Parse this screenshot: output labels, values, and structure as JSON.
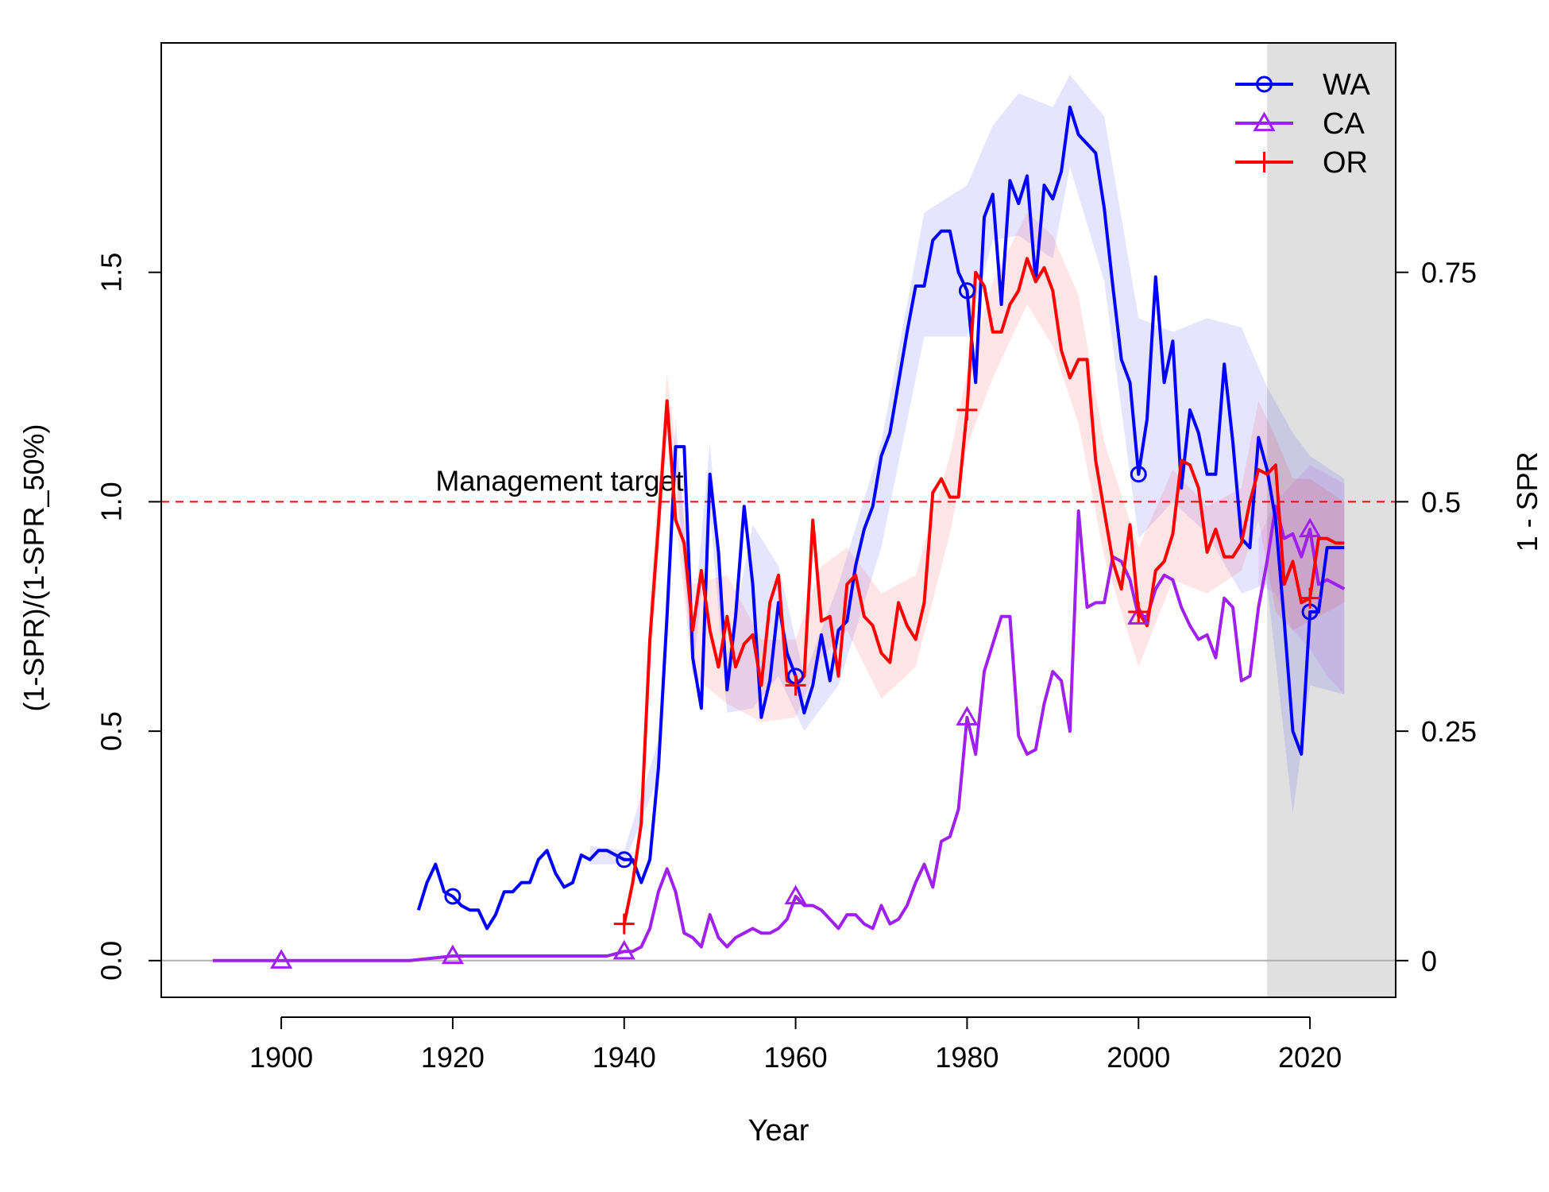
{
  "chart_data": {
    "type": "line",
    "title": "",
    "xlabel": "Year",
    "ylabel_left": "(1-SPR)/(1-SPR_50%)",
    "ylabel_right": "1 - SPR",
    "xlim": [
      1886,
      2030
    ],
    "ylim": [
      -0.08,
      2.0
    ],
    "x_ticks": [
      1900,
      1920,
      1940,
      1960,
      1980,
      2000,
      2020
    ],
    "y_ticks_left": [
      {
        "value": 0.0,
        "label": "0.0"
      },
      {
        "value": 0.5,
        "label": "0.5"
      },
      {
        "value": 1.0,
        "label": "1.0"
      },
      {
        "value": 1.5,
        "label": "1.5"
      }
    ],
    "y_ticks_right": [
      {
        "value": 0.0,
        "label": "0"
      },
      {
        "value": 0.5,
        "label": "0.25"
      },
      {
        "value": 1.0,
        "label": "0.5"
      },
      {
        "value": 1.5,
        "label": "0.75"
      }
    ],
    "reference_line": {
      "y": 1.0,
      "label": "Management target",
      "color": "#ff0000",
      "label_x": 1918
    },
    "zero_line": {
      "y": 0.0,
      "color": "#b0b0b0"
    },
    "forecast_region": {
      "x_start": 2015,
      "x_end": 2030,
      "color": "#e0e0e0"
    },
    "legend": {
      "position": "top-right",
      "entries": [
        {
          "name": "WA",
          "color": "#0000ff",
          "marker": "circle"
        },
        {
          "name": "CA",
          "color": "#a020f0",
          "marker": "triangle"
        },
        {
          "name": "OR",
          "color": "#ff0000",
          "marker": "plus"
        }
      ]
    },
    "series": [
      {
        "name": "WA",
        "color": "#0000ff",
        "band_color": "#0000ff",
        "marker": "circle",
        "marker_x": [
          1920,
          1940,
          1960,
          1980,
          2000,
          2020
        ],
        "x": [
          1916,
          1917,
          1918,
          1919,
          1920,
          1921,
          1922,
          1923,
          1924,
          1925,
          1926,
          1927,
          1928,
          1929,
          1930,
          1931,
          1932,
          1933,
          1934,
          1935,
          1936,
          1937,
          1938,
          1939,
          1940,
          1941,
          1942,
          1943,
          1944,
          1945,
          1946,
          1947,
          1948,
          1949,
          1950,
          1951,
          1952,
          1953,
          1954,
          1955,
          1956,
          1957,
          1958,
          1959,
          1960,
          1961,
          1962,
          1963,
          1964,
          1965,
          1966,
          1967,
          1968,
          1969,
          1970,
          1971,
          1972,
          1973,
          1974,
          1975,
          1976,
          1977,
          1978,
          1979,
          1980,
          1981,
          1982,
          1983,
          1984,
          1985,
          1986,
          1987,
          1988,
          1989,
          1990,
          1991,
          1992,
          1993,
          1994,
          1995,
          1996,
          1997,
          1998,
          1999,
          2000,
          2001,
          2002,
          2003,
          2004,
          2005,
          2006,
          2007,
          2008,
          2009,
          2010,
          2011,
          2012,
          2013,
          2014,
          2015,
          2016,
          2017,
          2018,
          2019,
          2020,
          2021,
          2022,
          2023,
          2024
        ],
        "y": [
          0.11,
          0.17,
          0.21,
          0.15,
          0.14,
          0.12,
          0.11,
          0.11,
          0.07,
          0.1,
          0.15,
          0.15,
          0.17,
          0.17,
          0.22,
          0.24,
          0.19,
          0.16,
          0.17,
          0.23,
          0.22,
          0.24,
          0.24,
          0.23,
          0.22,
          0.22,
          0.17,
          0.22,
          0.42,
          0.75,
          1.12,
          1.12,
          0.66,
          0.55,
          1.06,
          0.89,
          0.59,
          0.75,
          0.99,
          0.82,
          0.53,
          0.61,
          0.78,
          0.67,
          0.62,
          0.54,
          0.6,
          0.71,
          0.61,
          0.72,
          0.74,
          0.86,
          0.94,
          0.99,
          1.1,
          1.15,
          1.26,
          1.37,
          1.47,
          1.47,
          1.57,
          1.59,
          1.59,
          1.5,
          1.46,
          1.26,
          1.62,
          1.67,
          1.43,
          1.7,
          1.65,
          1.71,
          1.48,
          1.69,
          1.66,
          1.72,
          1.86,
          1.8,
          1.78,
          1.76,
          1.64,
          1.47,
          1.31,
          1.26,
          1.06,
          1.18,
          1.49,
          1.26,
          1.35,
          1.03,
          1.2,
          1.15,
          1.06,
          1.06,
          1.3,
          1.13,
          0.92,
          0.9,
          1.14,
          1.07,
          0.96,
          0.74,
          0.5,
          0.45,
          0.76,
          0.76,
          0.9,
          0.9,
          0.9
        ],
        "band_x": [
          1936,
          1940,
          1944,
          1946,
          1948,
          1950,
          1952,
          1955,
          1958,
          1961,
          1965,
          1970,
          1975,
          1980,
          1983,
          1986,
          1990,
          1992,
          1996,
          2000,
          2004,
          2008,
          2012,
          2015,
          2018,
          2020,
          2024
        ],
        "band_lo": [
          0.21,
          0.21,
          0.4,
          1.07,
          0.62,
          0.98,
          0.54,
          0.55,
          0.62,
          0.5,
          0.6,
          0.9,
          1.36,
          1.36,
          1.57,
          1.58,
          1.53,
          1.73,
          1.48,
          0.92,
          1.0,
          0.93,
          0.8,
          0.82,
          0.32,
          0.6,
          0.58
        ],
        "band_hi": [
          0.25,
          0.24,
          0.48,
          1.18,
          0.72,
          1.13,
          0.66,
          0.95,
          0.86,
          0.62,
          0.82,
          1.13,
          1.63,
          1.69,
          1.82,
          1.89,
          1.86,
          1.93,
          1.84,
          1.4,
          1.37,
          1.4,
          1.38,
          1.25,
          1.15,
          1.1,
          1.05
        ]
      },
      {
        "name": "CA",
        "color": "#a020f0",
        "band_color": "#a020f0",
        "marker": "triangle",
        "marker_x": [
          1900,
          1920,
          1940,
          1960,
          1980,
          2000,
          2020
        ],
        "x": [
          1892,
          1900,
          1910,
          1915,
          1920,
          1930,
          1935,
          1938,
          1940,
          1941,
          1942,
          1943,
          1944,
          1945,
          1946,
          1947,
          1948,
          1949,
          1950,
          1951,
          1952,
          1953,
          1954,
          1955,
          1956,
          1957,
          1958,
          1959,
          1960,
          1961,
          1962,
          1963,
          1964,
          1965,
          1966,
          1967,
          1968,
          1969,
          1970,
          1971,
          1972,
          1973,
          1974,
          1975,
          1976,
          1977,
          1978,
          1979,
          1980,
          1981,
          1982,
          1983,
          1984,
          1985,
          1986,
          1987,
          1988,
          1989,
          1990,
          1991,
          1992,
          1993,
          1994,
          1995,
          1996,
          1997,
          1998,
          1999,
          2000,
          2001,
          2002,
          2003,
          2004,
          2005,
          2006,
          2007,
          2008,
          2009,
          2010,
          2011,
          2012,
          2013,
          2014,
          2015,
          2016,
          2017,
          2018,
          2019,
          2020,
          2021,
          2022,
          2023,
          2024
        ],
        "y": [
          0.0,
          0.0,
          0.0,
          0.0,
          0.01,
          0.01,
          0.01,
          0.01,
          0.02,
          0.02,
          0.03,
          0.07,
          0.15,
          0.2,
          0.15,
          0.06,
          0.05,
          0.03,
          0.1,
          0.05,
          0.03,
          0.05,
          0.06,
          0.07,
          0.06,
          0.06,
          0.07,
          0.09,
          0.14,
          0.12,
          0.12,
          0.11,
          0.09,
          0.07,
          0.1,
          0.1,
          0.08,
          0.07,
          0.12,
          0.08,
          0.09,
          0.12,
          0.17,
          0.21,
          0.16,
          0.26,
          0.27,
          0.33,
          0.53,
          0.45,
          0.63,
          0.69,
          0.75,
          0.75,
          0.49,
          0.45,
          0.46,
          0.56,
          0.63,
          0.61,
          0.5,
          0.98,
          0.77,
          0.78,
          0.78,
          0.88,
          0.87,
          0.83,
          0.75,
          0.75,
          0.81,
          0.84,
          0.83,
          0.77,
          0.73,
          0.7,
          0.71,
          0.66,
          0.79,
          0.77,
          0.61,
          0.62,
          0.77,
          0.87,
          0.99,
          0.92,
          0.93,
          0.88,
          0.94,
          0.82,
          0.83,
          0.82,
          0.81
        ],
        "band_x": [
          2014,
          2016,
          2018,
          2020,
          2022,
          2024
        ],
        "band_lo": [
          0.82,
          0.8,
          0.72,
          0.68,
          0.62,
          0.58
        ],
        "band_hi": [
          0.92,
          1.0,
          1.04,
          1.08,
          1.06,
          1.04
        ]
      },
      {
        "name": "OR",
        "color": "#ff0000",
        "band_color": "#ff0000",
        "marker": "plus",
        "marker_x": [
          1940,
          1960,
          1980,
          2000,
          2020
        ],
        "x": [
          1940,
          1941,
          1942,
          1943,
          1944,
          1945,
          1946,
          1947,
          1948,
          1949,
          1950,
          1951,
          1952,
          1953,
          1954,
          1955,
          1956,
          1957,
          1958,
          1959,
          1960,
          1961,
          1962,
          1963,
          1964,
          1965,
          1966,
          1967,
          1968,
          1969,
          1970,
          1971,
          1972,
          1973,
          1974,
          1975,
          1976,
          1977,
          1978,
          1979,
          1980,
          1981,
          1982,
          1983,
          1984,
          1985,
          1986,
          1987,
          1988,
          1989,
          1990,
          1991,
          1992,
          1993,
          1994,
          1995,
          1996,
          1997,
          1998,
          1999,
          2000,
          2001,
          2002,
          2003,
          2004,
          2005,
          2006,
          2007,
          2008,
          2009,
          2010,
          2011,
          2012,
          2013,
          2014,
          2015,
          2016,
          2017,
          2018,
          2019,
          2020,
          2021,
          2022,
          2023,
          2024
        ],
        "y": [
          0.08,
          0.17,
          0.3,
          0.7,
          0.95,
          1.22,
          0.96,
          0.91,
          0.72,
          0.85,
          0.72,
          0.64,
          0.75,
          0.64,
          0.69,
          0.71,
          0.6,
          0.78,
          0.84,
          0.61,
          0.6,
          0.62,
          0.96,
          0.74,
          0.75,
          0.62,
          0.82,
          0.84,
          0.75,
          0.73,
          0.67,
          0.65,
          0.78,
          0.73,
          0.7,
          0.78,
          1.02,
          1.05,
          1.01,
          1.01,
          1.2,
          1.5,
          1.47,
          1.37,
          1.37,
          1.43,
          1.46,
          1.53,
          1.48,
          1.51,
          1.46,
          1.33,
          1.27,
          1.31,
          1.31,
          1.09,
          0.98,
          0.87,
          0.81,
          0.95,
          0.76,
          0.73,
          0.85,
          0.87,
          0.93,
          1.09,
          1.08,
          1.03,
          0.89,
          0.94,
          0.88,
          0.88,
          0.91,
          1.0,
          1.07,
          1.06,
          1.08,
          0.82,
          0.87,
          0.78,
          0.79,
          0.92,
          0.92,
          0.91,
          0.91
        ],
        "band_x": [
          1943,
          1945,
          1948,
          1952,
          1956,
          1960,
          1963,
          1966,
          1970,
          1974,
          1978,
          1980,
          1983,
          1987,
          1990,
          1993,
          1996,
          2000,
          2004,
          2008,
          2012,
          2014,
          2016,
          2018,
          2020,
          2024
        ],
        "band_lo": [
          0.62,
          1.14,
          0.62,
          0.56,
          0.52,
          0.53,
          0.66,
          0.72,
          0.57,
          0.64,
          0.93,
          1.12,
          1.27,
          1.43,
          1.34,
          1.17,
          0.88,
          0.64,
          0.83,
          0.8,
          0.85,
          0.96,
          0.76,
          0.72,
          0.74,
          0.78
        ],
        "band_hi": [
          0.78,
          1.28,
          0.82,
          0.84,
          0.7,
          0.7,
          0.86,
          0.9,
          0.8,
          0.84,
          1.1,
          1.28,
          1.48,
          1.63,
          1.58,
          1.45,
          1.13,
          0.9,
          1.07,
          0.99,
          1.03,
          1.22,
          1.14,
          1.05,
          1.05,
          1.0
        ]
      }
    ]
  }
}
